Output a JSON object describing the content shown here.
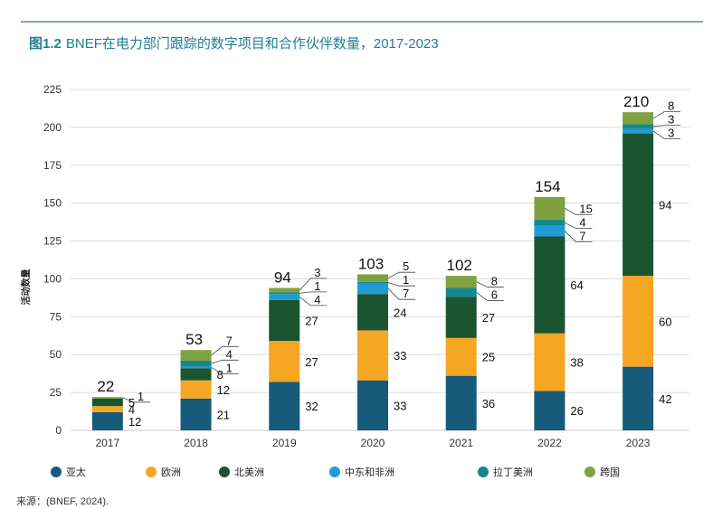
{
  "title": {
    "figure_label": "图1.2",
    "text": "BNEF在电力部门跟踪的数字项目和合作伙伴数量，2017-2023"
  },
  "source": "来源：(BNEF, 2024).",
  "chart_data": {
    "type": "bar",
    "stacked": true,
    "title": "BNEF在电力部门跟踪的数字项目和合作伙伴数量，2017-2023",
    "xlabel": "",
    "ylabel": "活动数量",
    "ylim": [
      0,
      225
    ],
    "yticks": [
      0,
      25,
      50,
      75,
      100,
      125,
      150,
      175,
      200,
      225
    ],
    "grid": true,
    "legend_position": "bottom",
    "categories": [
      "2017",
      "2018",
      "2019",
      "2020",
      "2021",
      "2022",
      "2023"
    ],
    "totals": [
      22,
      53,
      94,
      103,
      102,
      154,
      210
    ],
    "series": [
      {
        "name": "亚太",
        "color": "#175a7a",
        "values": [
          12,
          21,
          32,
          33,
          36,
          26,
          42
        ]
      },
      {
        "name": "欧洲",
        "color": "#f5a623",
        "values": [
          4,
          12,
          27,
          33,
          25,
          38,
          60
        ]
      },
      {
        "name": "北美洲",
        "color": "#1a5430",
        "values": [
          5,
          8,
          27,
          24,
          27,
          64,
          94
        ]
      },
      {
        "name": "中东和非洲",
        "color": "#1f9bd6",
        "values": [
          0,
          1,
          4,
          7,
          0,
          7,
          3
        ]
      },
      {
        "name": "拉丁美洲",
        "color": "#16868f",
        "values": [
          0,
          4,
          1,
          1,
          6,
          4,
          3
        ]
      },
      {
        "name": "跨国",
        "color": "#7fa240",
        "values": [
          1,
          7,
          3,
          5,
          8,
          15,
          8
        ]
      }
    ],
    "segment_labels": [
      [
        "12",
        "4",
        "5",
        "1"
      ],
      [
        "21",
        "12",
        "8",
        "1",
        "4",
        "7"
      ],
      [
        "32",
        "27",
        "27",
        "4",
        "1",
        "3"
      ],
      [
        "33",
        "33",
        "24",
        "7",
        "1",
        "5"
      ],
      [
        "36",
        "25",
        "27",
        "6",
        "8"
      ],
      [
        "26",
        "38",
        "64",
        "7",
        "4",
        "15"
      ],
      [
        "42",
        "60",
        "94",
        "3",
        "3",
        "8"
      ]
    ]
  }
}
